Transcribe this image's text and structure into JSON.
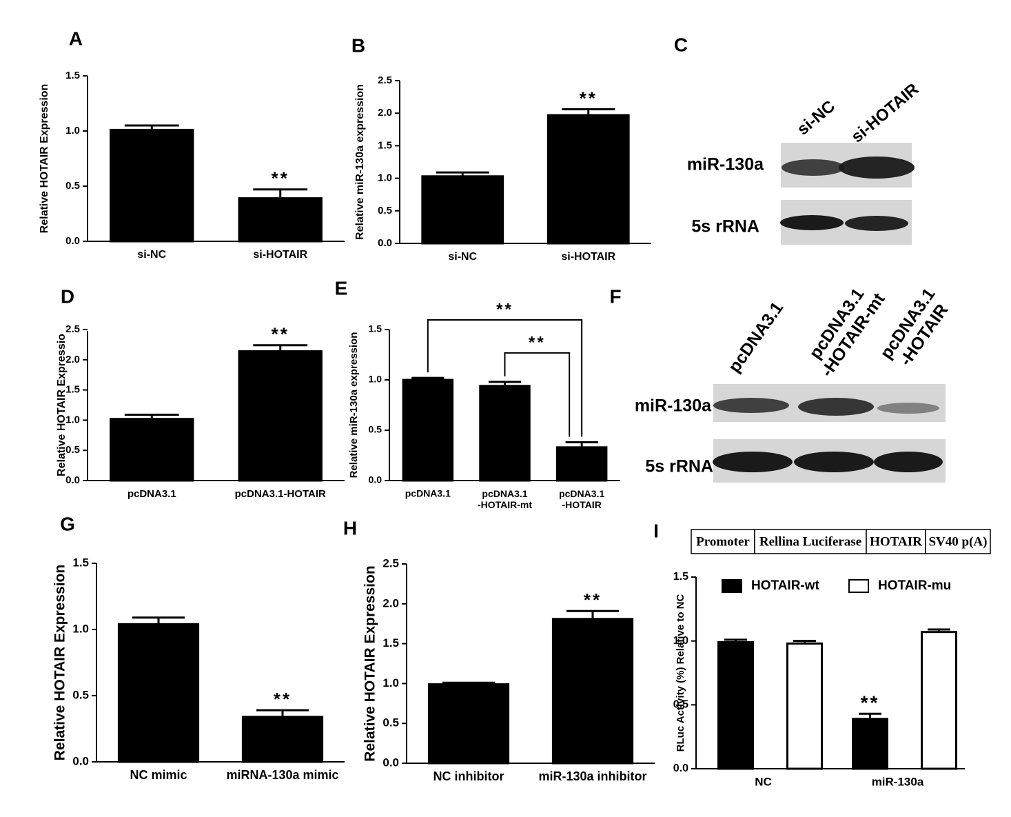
{
  "chart_data": [
    {
      "type": "bar",
      "panel": "A",
      "ylabel": "Relative HOTAIR Expression",
      "categories": [
        "si-NC",
        "si-HOTAIR"
      ],
      "values": [
        1.01,
        0.39
      ],
      "errors": [
        0.04,
        0.08
      ],
      "significance": [
        null,
        "**"
      ],
      "color": "#000000",
      "ylim": [
        0,
        1.5
      ],
      "yticks": [
        {
          "value": 0,
          "label": "0.0"
        },
        {
          "value": 0.5,
          "label": "0.5"
        },
        {
          "value": 1,
          "label": "1.0"
        },
        {
          "value": 1.5,
          "label": "1.5"
        }
      ]
    },
    {
      "type": "bar",
      "panel": "B",
      "ylabel": "Relative miR-130a expression",
      "categories": [
        "si-NC",
        "si-HOTAIR"
      ],
      "values": [
        1.03,
        1.97
      ],
      "errors": [
        0.06,
        0.09
      ],
      "significance": [
        null,
        "**"
      ],
      "color": "#000000",
      "ylim": [
        0,
        2.5
      ],
      "yticks": [
        {
          "value": 0,
          "label": "0.0"
        },
        {
          "value": 0.5,
          "label": "0.5"
        },
        {
          "value": 1,
          "label": "1.0"
        },
        {
          "value": 1.5,
          "label": "1.5"
        },
        {
          "value": 2,
          "label": "2.0"
        },
        {
          "value": 2.5,
          "label": "2.5"
        }
      ]
    },
    {
      "type": "bar",
      "panel": "D",
      "ylabel": "Relative HOTAIR Expressio",
      "categories": [
        "pcDNA3.1",
        "pcDNA3.1-HOTAIR"
      ],
      "values": [
        1.02,
        2.14
      ],
      "errors": [
        0.07,
        0.1
      ],
      "significance": [
        null,
        "**"
      ],
      "color": "#000000",
      "ylim": [
        0,
        2.5
      ],
      "yticks": [
        {
          "value": 0,
          "label": "0.0"
        },
        {
          "value": 0.5,
          "label": "0.5"
        },
        {
          "value": 1,
          "label": "1.0"
        },
        {
          "value": 1.5,
          "label": "1.5"
        },
        {
          "value": 2,
          "label": "2.0"
        },
        {
          "value": 2.5,
          "label": "2.5"
        }
      ]
    },
    {
      "type": "bar",
      "panel": "E",
      "ylabel": "Relative miR-130a expression",
      "categories": [
        "pcDNA3.1",
        "pcDNA3.1\n-HOTAIR-mt",
        "pcDNA3.1\n-HOTAIR"
      ],
      "values": [
        1.0,
        0.94,
        0.33
      ],
      "errors": [
        0.02,
        0.04,
        0.05
      ],
      "color": "#000000",
      "brackets": [
        "**",
        "**"
      ],
      "ylim": [
        0,
        1.5
      ],
      "yticks": [
        {
          "value": 0,
          "label": "0.0"
        },
        {
          "value": 0.5,
          "label": "0.5"
        },
        {
          "value": 1,
          "label": "1.0"
        },
        {
          "value": 1.5,
          "label": "1.5"
        }
      ]
    },
    {
      "type": "bar",
      "panel": "G",
      "ylabel": "Relative HOTAIR Expression",
      "categories": [
        "NC mimic",
        "miRNA-130a mimic"
      ],
      "values": [
        1.04,
        0.34
      ],
      "errors": [
        0.05,
        0.05
      ],
      "significance": [
        null,
        "**"
      ],
      "color": "#000000",
      "ylim": [
        0,
        1.5
      ],
      "yticks": [
        {
          "value": 0,
          "label": "0.0"
        },
        {
          "value": 0.5,
          "label": "0.5"
        },
        {
          "value": 1,
          "label": "1.0"
        },
        {
          "value": 1.5,
          "label": "1.5"
        }
      ]
    },
    {
      "type": "bar",
      "panel": "H",
      "ylabel": "Relative HOTAIR Expression",
      "categories": [
        "NC inhibitor",
        "miR-130a inhibitor"
      ],
      "values": [
        0.99,
        1.81
      ],
      "errors": [
        0.02,
        0.1
      ],
      "significance": [
        null,
        "**"
      ],
      "color": "#000000",
      "ylim": [
        0,
        2.5
      ],
      "yticks": [
        {
          "value": 0,
          "label": "0.0"
        },
        {
          "value": 0.5,
          "label": "0.5"
        },
        {
          "value": 1,
          "label": "1.0"
        },
        {
          "value": 1.5,
          "label": "1.5"
        },
        {
          "value": 2,
          "label": "2.0"
        },
        {
          "value": 2.5,
          "label": "2.5"
        }
      ]
    },
    {
      "type": "grouped-bar",
      "panel": "I",
      "ylabel": "RLuc Activity (%) Relative to NC",
      "categories": [
        "NC",
        "miR-130a"
      ],
      "series": [
        {
          "name": "HOTAIR-wt",
          "color": "#000000",
          "values": [
            0.99,
            0.39
          ],
          "errors": [
            0.02,
            0.04
          ],
          "significance": [
            null,
            "**"
          ]
        },
        {
          "name": "HOTAIR-mu",
          "color": "#ffffff",
          "values": [
            0.98,
            1.07
          ],
          "errors": [
            0.02,
            0.02
          ]
        }
      ],
      "ylim": [
        0,
        1.5
      ],
      "yticks": [
        {
          "value": 0,
          "label": "0.0"
        },
        {
          "value": 0.5,
          "label": "0.5"
        },
        {
          "value": 1,
          "label": "1.0"
        },
        {
          "value": 1.5,
          "label": "1.5"
        }
      ]
    }
  ],
  "blots": [
    {
      "panel": "C",
      "lanes": [
        "si-NC",
        "si-HOTAIR"
      ],
      "rows": [
        "miR-130a",
        "5s rRNA"
      ]
    },
    {
      "panel": "F",
      "lanes": [
        "pcDNA3.1",
        "pcDNA3.1\n-HOTAIR-mt",
        "pcDNA3.1\n-HOTAIR"
      ],
      "rows": [
        "miR-130a",
        "5s rRNA"
      ]
    }
  ],
  "construct": {
    "segments": [
      "Promoter",
      "Rellina Luciferase",
      "HOTAIR",
      "SV40 p(A)"
    ]
  }
}
